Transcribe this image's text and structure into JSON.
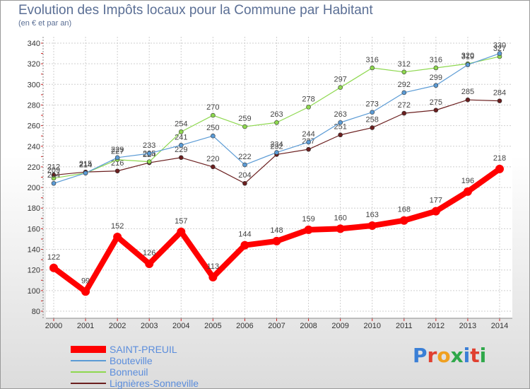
{
  "title": "Evolution des Impôts locaux pour la Commune par Habitant",
  "subtitle": "(en € et par an)",
  "logo_text": "Proxiti",
  "chart_data": {
    "type": "line",
    "title": "Evolution des Impôts locaux pour la Commune par Habitant",
    "subtitle": "(en € et par an)",
    "categories": [
      "2000",
      "2001",
      "2002",
      "2003",
      "2004",
      "2005",
      "2006",
      "2007",
      "2008",
      "2009",
      "2010",
      "2011",
      "2012",
      "2013",
      "2014"
    ],
    "ylim": [
      80,
      340
    ],
    "yticks": [
      80,
      100,
      120,
      140,
      160,
      180,
      200,
      220,
      240,
      260,
      280,
      300,
      320,
      340
    ],
    "grid": true,
    "series": [
      {
        "name": "SAINT-PREUIL",
        "color": "#ff0000",
        "values": [
          122,
          99,
          152,
          126,
          157,
          113,
          144,
          148,
          159,
          160,
          163,
          168,
          177,
          196,
          218
        ]
      },
      {
        "name": "Bouteville",
        "color": "#5b9bd5",
        "values": [
          204,
          214,
          229,
          233,
          241,
          250,
          222,
          234,
          244,
          263,
          273,
          292,
          299,
          319,
          330
        ]
      },
      {
        "name": "Bonneuil",
        "color": "#8ed84f",
        "values": [
          209,
          214,
          227,
          225,
          254,
          270,
          259,
          263,
          278,
          297,
          316,
          312,
          316,
          320,
          327
        ]
      },
      {
        "name": "Lignières-Sonneville",
        "color": "#6b1f1f",
        "values": [
          212,
          215,
          216,
          224,
          229,
          220,
          204,
          232,
          237,
          251,
          258,
          272,
          275,
          285,
          284
        ]
      }
    ]
  }
}
